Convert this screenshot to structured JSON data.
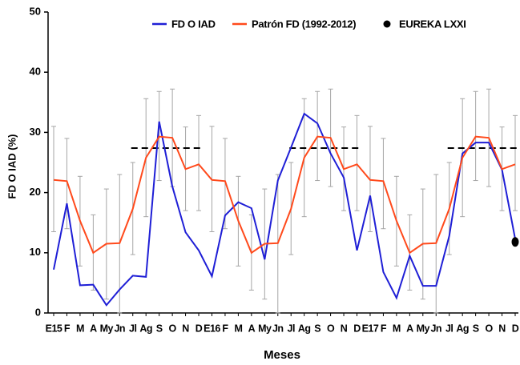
{
  "chart_data": {
    "type": "line",
    "y_label": "FD O IAD (%)",
    "x_label": "Meses",
    "categories": [
      "E15",
      "F",
      "M",
      "A",
      "My",
      "Jn",
      "Jl",
      "Ag",
      "S",
      "O",
      "N",
      "D",
      "E16",
      "F",
      "M",
      "A",
      "My",
      "Jn",
      "Jl",
      "Ag",
      "S",
      "O",
      "N",
      "D",
      "E17",
      "F",
      "M",
      "A",
      "My",
      "Jn",
      "Jl",
      "Ag",
      "S",
      "O",
      "N",
      "D"
    ],
    "series": [
      {
        "name": "FD O IAD",
        "color": "#1f1fd6",
        "values": [
          7.2,
          18.2,
          4.6,
          4.7,
          1.3,
          3.9,
          6.2,
          6.0,
          31.8,
          21.0,
          13.4,
          10.4,
          6.1,
          16.2,
          18.4,
          17.4,
          8.9,
          22.0,
          27.5,
          33.1,
          31.5,
          26.5,
          22.5,
          10.4,
          19.5,
          6.8,
          2.5,
          9.5,
          4.5,
          4.5,
          12.8,
          26.5,
          28.3,
          28.3,
          23.8,
          12.3
        ]
      },
      {
        "name": "Patrón FD (1992-2012)",
        "color": "#ff4a1c",
        "values": [
          22.1,
          21.9,
          15.3,
          10.0,
          11.5,
          11.6,
          17.3,
          25.8,
          29.3,
          29.1,
          23.9,
          24.7,
          22.1,
          21.9,
          15.3,
          10.0,
          11.5,
          11.6,
          17.3,
          25.8,
          29.3,
          29.1,
          23.9,
          24.7,
          22.1,
          21.9,
          15.3,
          10.0,
          11.5,
          11.6,
          17.3,
          25.8,
          29.3,
          29.1,
          23.9,
          24.7
        ],
        "error_low": [
          13.5,
          14.0,
          7.8,
          3.8,
          2.3,
          0,
          9.7,
          16.0,
          22.0,
          21.0,
          17.0,
          17.0,
          13.5,
          14.0,
          7.8,
          3.8,
          2.3,
          0,
          9.7,
          16.0,
          22.0,
          21.0,
          17.0,
          17.0,
          13.5,
          14.0,
          7.8,
          3.8,
          2.3,
          0,
          9.7,
          16.0,
          22.0,
          21.0,
          17.0,
          17.0
        ],
        "error_high": [
          31.0,
          29.0,
          22.7,
          16.3,
          20.6,
          23.0,
          25.0,
          35.6,
          36.8,
          37.2,
          30.9,
          32.8,
          31.0,
          29.0,
          22.7,
          16.3,
          20.6,
          23.0,
          25.0,
          35.6,
          36.8,
          37.2,
          30.9,
          32.8,
          31.0,
          29.0,
          22.7,
          16.3,
          20.6,
          23.0,
          25.0,
          35.6,
          36.8,
          37.2,
          30.9,
          32.8
        ]
      },
      {
        "name": "EUREKA LXXI",
        "color": "#000000",
        "values": [
          null,
          null,
          null,
          null,
          null,
          null,
          null,
          null,
          null,
          null,
          null,
          null,
          null,
          null,
          null,
          null,
          null,
          null,
          null,
          null,
          null,
          null,
          null,
          null,
          null,
          null,
          null,
          null,
          null,
          null,
          null,
          null,
          null,
          null,
          null,
          11.8
        ]
      }
    ],
    "reference_value": 27.4,
    "ylim": [
      0,
      50
    ],
    "yticks": [
      0,
      10,
      20,
      30,
      40,
      50
    ]
  }
}
